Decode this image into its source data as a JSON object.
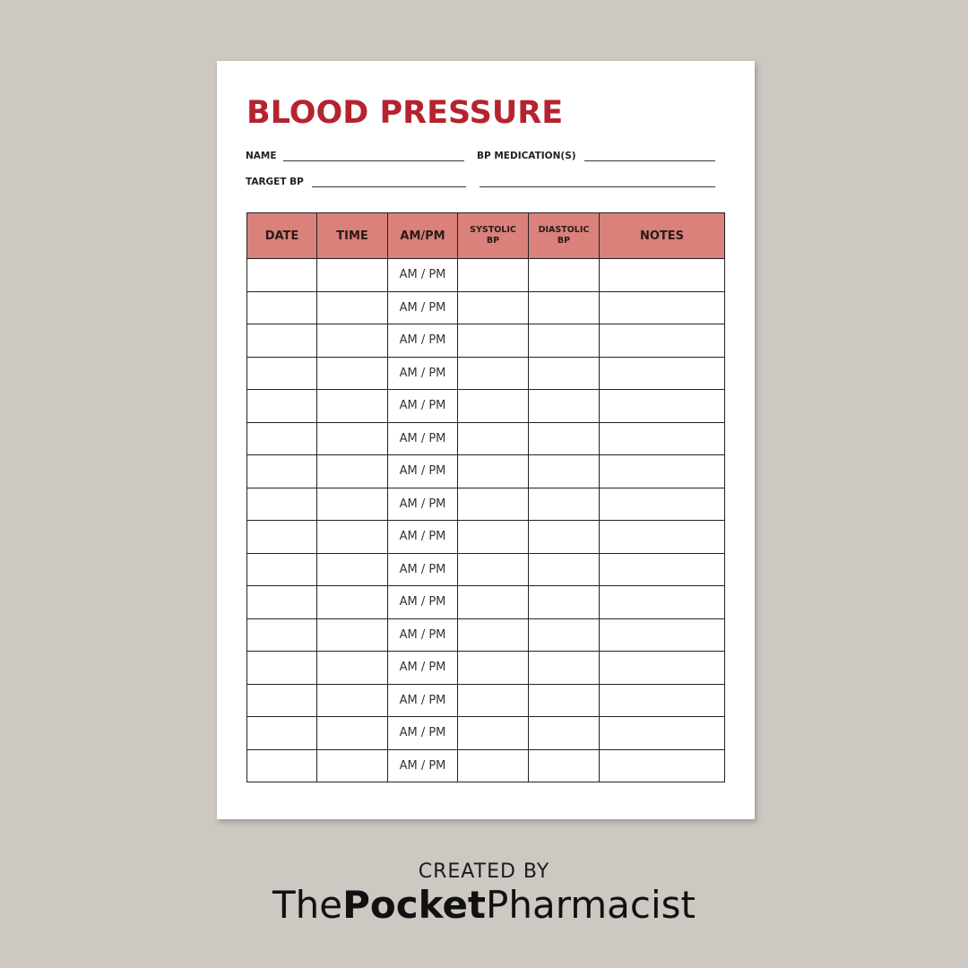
{
  "header": {
    "title": "BLOOD PRESSURE"
  },
  "fields": {
    "name": "NAME",
    "medications": "BP MEDICATION(S)",
    "target": "TARGET BP"
  },
  "table": {
    "columns": [
      "DATE",
      "TIME",
      "AM/PM",
      "SYSTOLIC BP",
      "DIASTOLIC BP",
      "NOTES"
    ],
    "rows": [
      "AM / PM",
      "AM / PM",
      "AM / PM",
      "AM / PM",
      "AM / PM",
      "AM / PM",
      "AM / PM",
      "AM / PM",
      "AM / PM",
      "AM / PM",
      "AM / PM",
      "AM / PM",
      "AM / PM",
      "AM / PM",
      "AM / PM",
      "AM / PM"
    ]
  },
  "footer": {
    "credit": "CREATED BY",
    "brand": [
      "The",
      "Pocket",
      "Pharmacist"
    ]
  }
}
